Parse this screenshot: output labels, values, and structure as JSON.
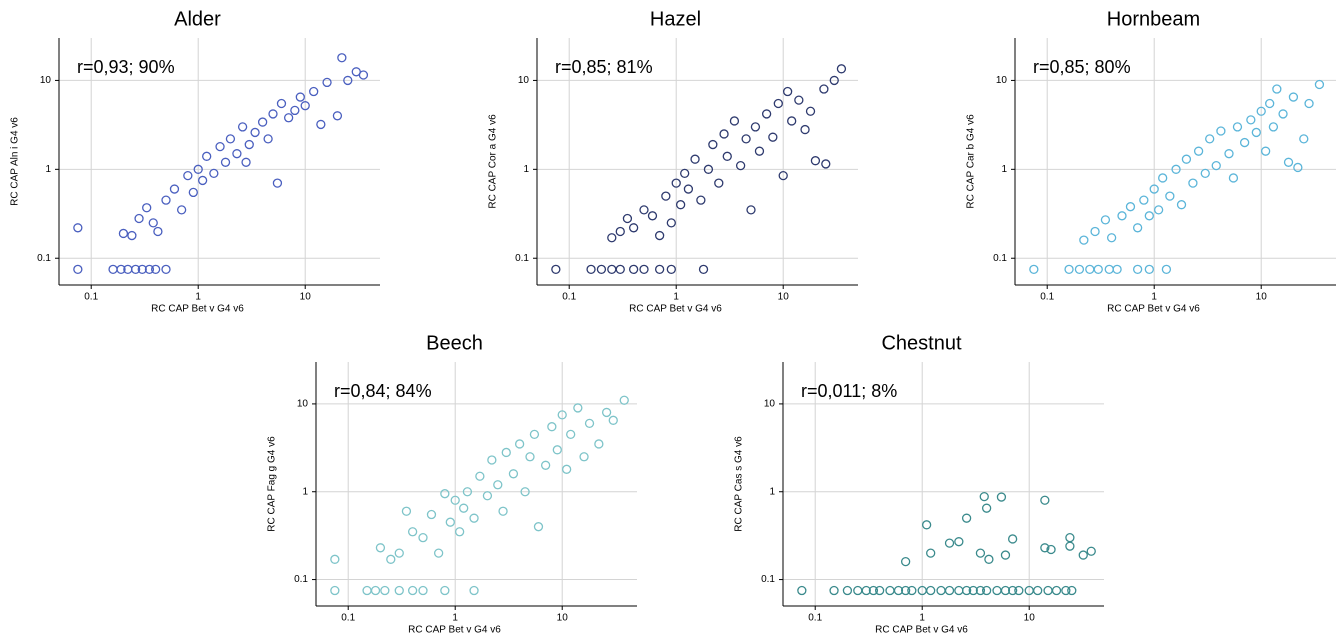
{
  "chart_data": [
    {
      "type": "scatter",
      "title": "Alder",
      "annotation": "r=0,93; 90%",
      "xlabel": "RC CAP Bet v G4 v6",
      "ylabel": "RC CAP Aln i G4 v6",
      "color": "#4a5fbf",
      "xscale": "log",
      "yscale": "log",
      "grid": true,
      "xlim": [
        0.05,
        50
      ],
      "ylim": [
        0.05,
        30
      ],
      "xticks": [
        0.1,
        1,
        10
      ],
      "yticks": [
        0.1,
        1,
        10
      ],
      "x": [
        0.075,
        0.075,
        0.16,
        0.19,
        0.22,
        0.26,
        0.3,
        0.35,
        0.4,
        0.5,
        0.2,
        0.24,
        0.28,
        0.33,
        0.38,
        0.42,
        0.5,
        0.6,
        0.7,
        0.8,
        0.9,
        1,
        1.1,
        1.2,
        1.4,
        1.6,
        1.8,
        2,
        2.3,
        2.6,
        3,
        3.4,
        4,
        4.5,
        5,
        5.5,
        6,
        7,
        8,
        9,
        10,
        12,
        14,
        16,
        20,
        22,
        25,
        30,
        35,
        2.8
      ],
      "y": [
        0.22,
        0.075,
        0.075,
        0.075,
        0.075,
        0.075,
        0.075,
        0.075,
        0.075,
        0.075,
        0.19,
        0.18,
        0.28,
        0.37,
        0.25,
        0.2,
        0.45,
        0.6,
        0.35,
        0.85,
        0.55,
        1.0,
        0.75,
        1.4,
        0.9,
        1.8,
        1.2,
        2.2,
        1.5,
        3.0,
        1.9,
        2.6,
        3.4,
        2.2,
        4.2,
        0.7,
        5.5,
        3.8,
        4.6,
        6.5,
        5.2,
        7.5,
        3.2,
        9.5,
        4.0,
        18,
        10,
        12.5,
        11.5,
        1.2
      ]
    },
    {
      "type": "scatter",
      "title": "Hazel",
      "annotation": "r=0,85; 81%",
      "xlabel": "RC CAP Bet v G4 v6",
      "ylabel": "RC CAP Cor a G4 v6",
      "color": "#2e3a6e",
      "xscale": "log",
      "yscale": "log",
      "grid": true,
      "xlim": [
        0.05,
        50
      ],
      "ylim": [
        0.05,
        30
      ],
      "xticks": [
        0.1,
        1,
        10
      ],
      "yticks": [
        0.1,
        1,
        10
      ],
      "x": [
        0.075,
        0.16,
        0.2,
        0.25,
        0.3,
        0.4,
        0.5,
        0.7,
        0.9,
        1.8,
        0.25,
        0.3,
        0.35,
        0.4,
        0.5,
        0.6,
        0.7,
        0.8,
        0.9,
        1,
        1.1,
        1.2,
        1.3,
        1.5,
        1.7,
        2,
        2.2,
        2.5,
        2.8,
        3,
        3.5,
        4,
        4.5,
        5,
        5.5,
        6,
        7,
        8,
        9,
        10,
        11,
        12,
        14,
        16,
        18,
        20,
        24,
        25,
        30,
        35
      ],
      "y": [
        0.075,
        0.075,
        0.075,
        0.075,
        0.075,
        0.075,
        0.075,
        0.075,
        0.075,
        0.075,
        0.17,
        0.2,
        0.28,
        0.22,
        0.35,
        0.3,
        0.18,
        0.5,
        0.25,
        0.7,
        0.4,
        0.9,
        0.6,
        1.3,
        0.45,
        1.0,
        1.9,
        0.7,
        2.5,
        1.4,
        3.5,
        1.1,
        2.2,
        0.35,
        3.0,
        1.6,
        4.2,
        2.3,
        5.5,
        0.85,
        7.5,
        3.5,
        6.0,
        2.8,
        4.5,
        1.25,
        8.0,
        1.15,
        10,
        13.5
      ]
    },
    {
      "type": "scatter",
      "title": "Hornbeam",
      "annotation": "r=0,85; 80%",
      "xlabel": "RC CAP Bet v G4 v6",
      "ylabel": "RC CAP Car b G4 v6",
      "color": "#5bb5d9",
      "xscale": "log",
      "yscale": "log",
      "grid": true,
      "xlim": [
        0.05,
        50
      ],
      "ylim": [
        0.05,
        30
      ],
      "xticks": [
        0.1,
        1,
        10
      ],
      "yticks": [
        0.1,
        1,
        10
      ],
      "x": [
        0.075,
        0.16,
        0.2,
        0.25,
        0.3,
        0.38,
        0.45,
        0.7,
        0.9,
        1.3,
        0.22,
        0.28,
        0.35,
        0.4,
        0.5,
        0.6,
        0.7,
        0.8,
        0.9,
        1,
        1.1,
        1.2,
        1.4,
        1.6,
        1.8,
        2,
        2.3,
        2.6,
        3,
        3.3,
        3.8,
        4.2,
        5,
        5.5,
        6,
        7,
        8,
        9,
        10,
        11,
        12,
        13,
        14,
        16,
        18,
        20,
        22,
        25,
        28,
        35
      ],
      "y": [
        0.075,
        0.075,
        0.075,
        0.075,
        0.075,
        0.075,
        0.075,
        0.075,
        0.075,
        0.075,
        0.16,
        0.2,
        0.27,
        0.17,
        0.3,
        0.38,
        0.22,
        0.45,
        0.3,
        0.6,
        0.35,
        0.8,
        0.5,
        1.0,
        0.4,
        1.3,
        0.7,
        1.6,
        0.9,
        2.2,
        1.1,
        2.7,
        1.5,
        0.8,
        3.0,
        2.0,
        3.6,
        2.6,
        4.5,
        1.6,
        5.5,
        3.0,
        8.0,
        4.2,
        1.2,
        6.5,
        1.05,
        2.2,
        5.5,
        9.0
      ]
    },
    {
      "type": "scatter",
      "title": "Beech",
      "annotation": "r=0,84; 84%",
      "xlabel": "RC CAP Bet v G4 v6",
      "ylabel": "RC CAP Fag g G4 v6",
      "color": "#7ec4c9",
      "xscale": "log",
      "yscale": "log",
      "grid": true,
      "xlim": [
        0.05,
        50
      ],
      "ylim": [
        0.05,
        30
      ],
      "xticks": [
        0.1,
        1,
        10
      ],
      "yticks": [
        0.1,
        1,
        10
      ],
      "x": [
        0.075,
        0.075,
        0.15,
        0.18,
        0.22,
        0.3,
        0.4,
        0.5,
        0.8,
        1.5,
        0.2,
        0.25,
        0.3,
        0.35,
        0.4,
        0.5,
        0.6,
        0.7,
        0.8,
        0.9,
        1,
        1.1,
        1.2,
        1.3,
        1.5,
        1.7,
        2,
        2.2,
        2.5,
        2.8,
        3,
        3.5,
        4,
        4.5,
        5,
        5.5,
        6,
        7,
        8,
        9,
        10,
        11,
        12,
        14,
        16,
        18,
        22,
        26,
        30,
        38
      ],
      "y": [
        0.17,
        0.075,
        0.075,
        0.075,
        0.075,
        0.075,
        0.075,
        0.075,
        0.075,
        0.075,
        0.23,
        0.17,
        0.2,
        0.6,
        0.35,
        0.3,
        0.55,
        0.2,
        0.95,
        0.45,
        0.8,
        0.35,
        0.65,
        1.0,
        0.5,
        1.5,
        0.9,
        2.3,
        1.2,
        0.6,
        2.8,
        1.6,
        3.5,
        1.0,
        2.5,
        4.5,
        0.4,
        2.0,
        5.5,
        3.0,
        7.5,
        1.8,
        4.5,
        9.0,
        2.5,
        6.0,
        3.5,
        8.0,
        6.5,
        11
      ]
    },
    {
      "type": "scatter",
      "title": "Chestnut",
      "annotation": "r=0,011; 8%",
      "xlabel": "RC CAP Bet v G4 v6",
      "ylabel": "RC CAP Cas s G4 v6",
      "color": "#3a8a8c",
      "xscale": "log",
      "yscale": "log",
      "grid": true,
      "xlim": [
        0.05,
        50
      ],
      "ylim": [
        0.05,
        30
      ],
      "xticks": [
        0.1,
        1,
        10
      ],
      "yticks": [
        0.1,
        1,
        10
      ],
      "x": [
        0.075,
        0.15,
        0.2,
        0.3,
        0.4,
        0.5,
        0.6,
        0.8,
        1,
        1.2,
        1.5,
        1.8,
        2.2,
        2.6,
        3,
        3.5,
        4,
        5,
        6,
        7,
        8,
        10,
        12,
        15,
        18,
        22,
        25,
        0.25,
        0.35,
        0.7,
        0.7,
        1.1,
        1.2,
        1.8,
        2.2,
        2.6,
        3.5,
        3.8,
        4,
        4.2,
        5.5,
        6,
        7,
        14,
        14,
        16,
        24,
        24,
        32,
        38
      ],
      "y": [
        0.075,
        0.075,
        0.075,
        0.075,
        0.075,
        0.075,
        0.075,
        0.075,
        0.075,
        0.075,
        0.075,
        0.075,
        0.075,
        0.075,
        0.075,
        0.075,
        0.075,
        0.075,
        0.075,
        0.075,
        0.075,
        0.075,
        0.075,
        0.075,
        0.075,
        0.075,
        0.075,
        0.075,
        0.075,
        0.075,
        0.16,
        0.42,
        0.2,
        0.26,
        0.27,
        0.5,
        0.2,
        0.88,
        0.65,
        0.17,
        0.87,
        0.19,
        0.29,
        0.8,
        0.23,
        0.22,
        0.3,
        0.24,
        0.19,
        0.21
      ]
    }
  ]
}
